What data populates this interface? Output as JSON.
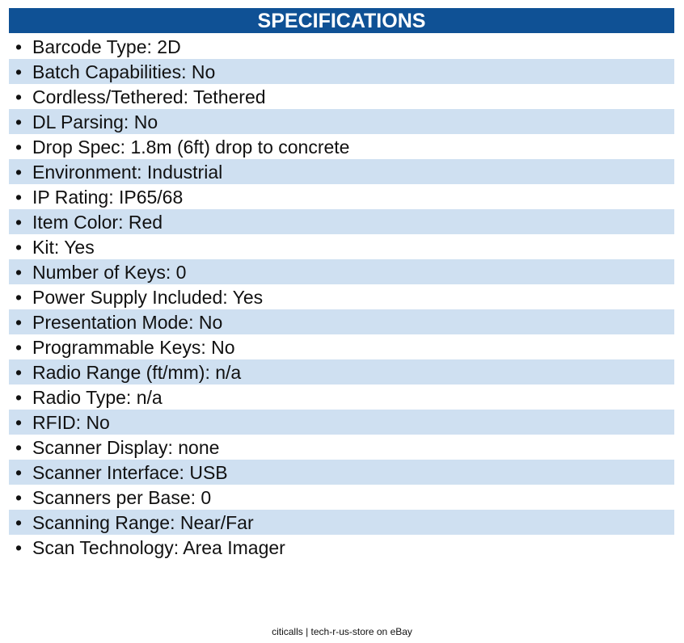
{
  "header": {
    "title": "SPECIFICATIONS"
  },
  "items": [
    "Barcode Type: 2D",
    "Batch Capabilities: No",
    "Cordless/Tethered: Tethered",
    "DL Parsing: No",
    "Drop Spec: 1.8m (6ft) drop to concrete",
    "Environment: Industrial",
    "IP Rating: IP65/68",
    "Item Color: Red",
    "Kit: Yes",
    "Number of Keys: 0",
    "Power Supply Included: Yes",
    "Presentation Mode: No",
    "Programmable Keys: No",
    "Radio Range (ft/mm): n/a",
    "Radio Type: n/a",
    "RFID: No",
    "Scanner Display: none",
    "Scanner Interface: USB",
    "Scanners per Base: 0",
    "Scanning Range: Near/Far",
    "Scan Technology: Area Imager"
  ],
  "footer": "citicalls | tech-r-us-store on eBay"
}
